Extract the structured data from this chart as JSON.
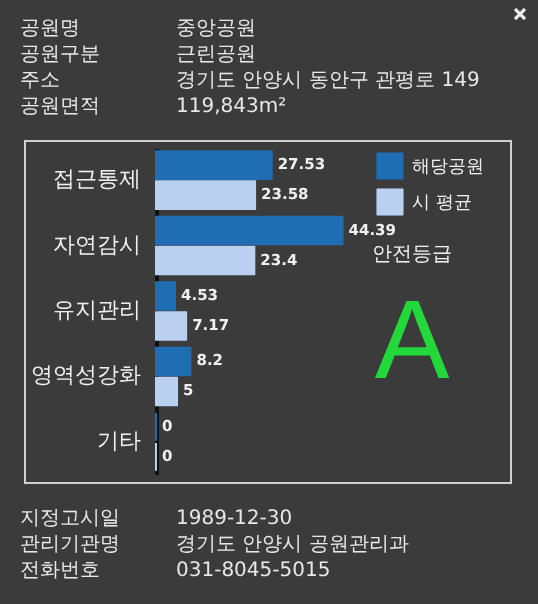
{
  "chart_data": {
    "type": "bar",
    "orientation": "horizontal",
    "data_labels": true,
    "legend": "top right",
    "categories": [
      "접근통제",
      "자연감시",
      "유지관리",
      "영역성강화",
      "기타"
    ],
    "series": [
      {
        "name": "해당공원",
        "color": "#1f6db2",
        "values": [
          27.53,
          44.39,
          4.53,
          8.2,
          0
        ]
      },
      {
        "name": "시 평균",
        "color": "#b9d0f0",
        "values": [
          23.58,
          23.4,
          7.17,
          5,
          0
        ]
      }
    ],
    "annotations": [
      "공원명",
      "중앙공원",
      "공원구분",
      "근린공원",
      "주소",
      "경기도 안양시 동안구 관평로 149",
      "공원면적",
      "119,843m²",
      "안전등급",
      "A",
      "지정고시일",
      "1989-12-30",
      "관리기관명",
      "경기도 안양시 공원관리과",
      "전화번호",
      "031-8045-5015"
    ]
  }
}
